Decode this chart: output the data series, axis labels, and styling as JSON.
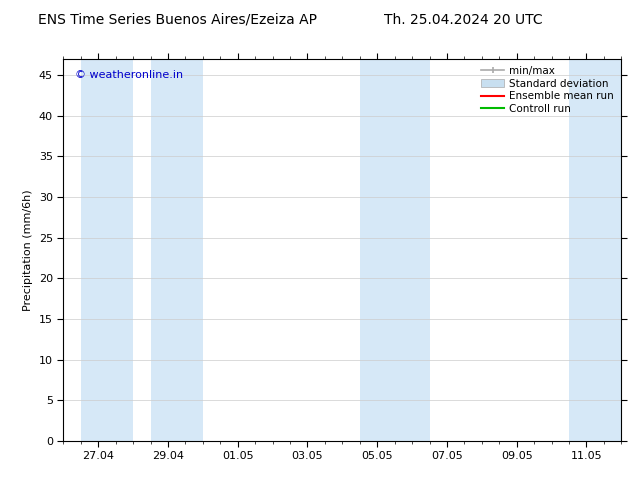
{
  "title_left": "ENS Time Series Buenos Aires/Ezeiza AP",
  "title_right": "Th. 25.04.2024 20 UTC",
  "ylabel": "Precipitation (mm/6h)",
  "watermark": "© weatheronline.in",
  "watermark_color": "#0000cc",
  "background_color": "#ffffff",
  "plot_bg_color": "#ffffff",
  "ylim": [
    0,
    47
  ],
  "yticks": [
    0,
    5,
    10,
    15,
    20,
    25,
    30,
    35,
    40,
    45
  ],
  "xtick_labels": [
    "27.04",
    "29.04",
    "01.05",
    "03.05",
    "05.05",
    "07.05",
    "09.05",
    "11.05"
  ],
  "xtick_positions": [
    1,
    3,
    5,
    7,
    9,
    11,
    13,
    15
  ],
  "x_min": 0,
  "x_max": 16,
  "shade_color": "#d6e8f7",
  "shade_bands": [
    [
      0.5,
      2.0
    ],
    [
      2.5,
      4.0
    ],
    [
      8.5,
      10.5
    ],
    [
      14.5,
      16.0
    ]
  ],
  "legend_minmax_color": "#aaaaaa",
  "legend_std_color": "#c8dff0",
  "legend_ens_color": "#ff0000",
  "legend_ctrl_color": "#00bb00",
  "title_fontsize": 10,
  "tick_fontsize": 8,
  "ylabel_fontsize": 8,
  "watermark_fontsize": 8,
  "legend_fontsize": 7.5
}
